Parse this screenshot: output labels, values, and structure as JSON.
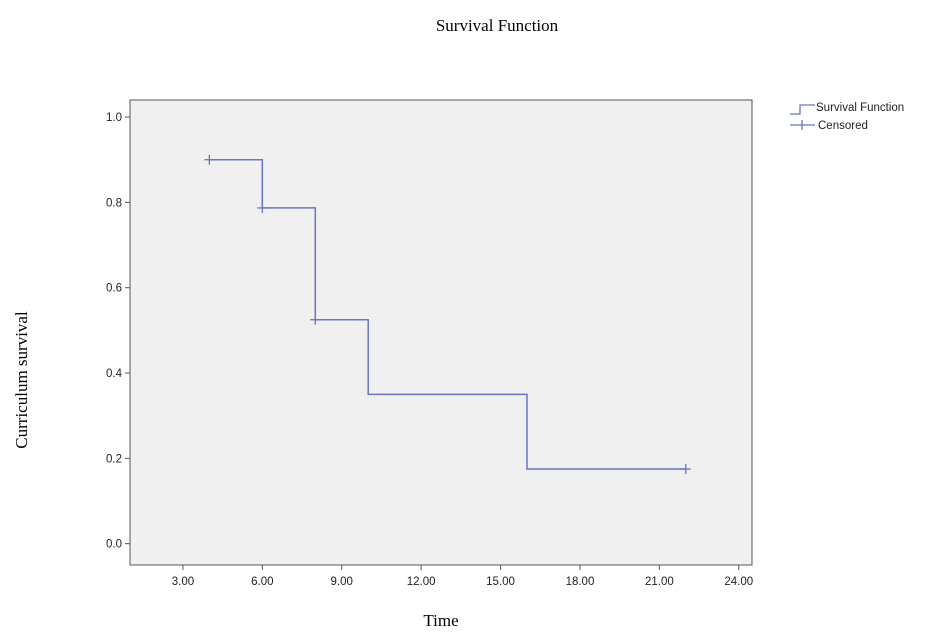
{
  "chart_data": {
    "type": "line",
    "subtype": "kaplan-meier step",
    "title": "Survival Function",
    "xlabel": "Time",
    "ylabel": "Curriculum survival",
    "xlim": [
      1.0,
      24.5
    ],
    "ylim": [
      -0.05,
      1.04
    ],
    "xticks": [
      3,
      6,
      9,
      12,
      15,
      18,
      21,
      24
    ],
    "xtick_labels": [
      "3.00",
      "6.00",
      "9.00",
      "12.00",
      "15.00",
      "18.00",
      "21.00",
      "24.00"
    ],
    "yticks": [
      0.0,
      0.2,
      0.4,
      0.6,
      0.8,
      1.0
    ],
    "ytick_labels": [
      "0.0",
      "0.2",
      "0.4",
      "0.6",
      "0.8",
      "1.0"
    ],
    "grid": false,
    "legend_position": "top-right outside plot",
    "colors": {
      "line": "#6a74c0",
      "plot_background": "#f0f0f0",
      "frame": "#555555"
    },
    "series": [
      {
        "name": "Survival Function",
        "x": [
          4,
          6,
          6,
          8,
          8,
          10,
          10,
          16,
          16,
          22
        ],
        "y": [
          0.9,
          0.9,
          0.787,
          0.787,
          0.525,
          0.525,
          0.35,
          0.35,
          0.175,
          0.175
        ]
      },
      {
        "name": "Censored",
        "x": [
          4,
          6,
          8,
          22
        ],
        "y": [
          0.9,
          0.787,
          0.525,
          0.175
        ]
      }
    ]
  }
}
